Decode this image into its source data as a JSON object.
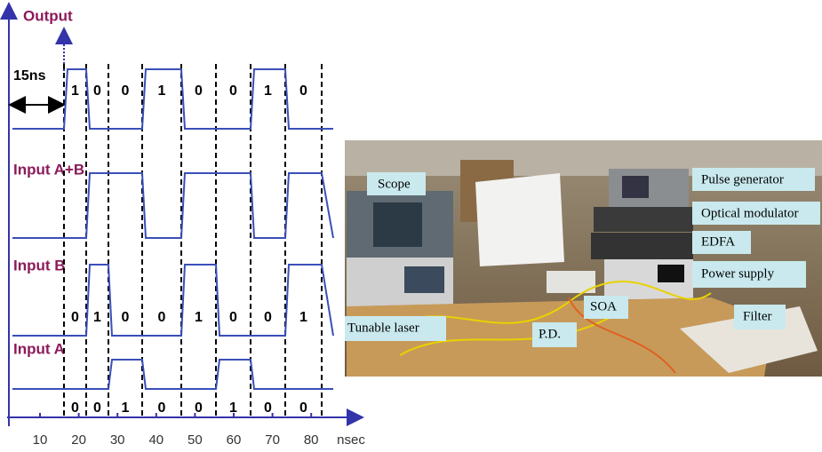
{
  "scope": {
    "output": {
      "label": "Output",
      "bits": [
        1,
        0,
        0,
        1,
        0,
        0,
        1,
        0
      ]
    },
    "delay_label": "15ns",
    "sum_label": "Input A+B",
    "input_b": {
      "label": "Input B",
      "bits": [
        0,
        1,
        0,
        0,
        1,
        0,
        0,
        1
      ]
    },
    "input_a": {
      "label": "Input A",
      "bits": [
        0,
        0,
        1,
        0,
        0,
        1,
        0,
        0
      ]
    },
    "x_axis": {
      "ticks": [
        10,
        20,
        30,
        40,
        50,
        60,
        70,
        80
      ],
      "unit": "nsec"
    }
  },
  "photo": {
    "labels": [
      "Scope",
      "Pulse generator",
      "Optical modulator",
      "EDFA",
      "Power supply",
      "Tunable laser",
      "SOA",
      "P.D.",
      "Filter"
    ]
  }
}
